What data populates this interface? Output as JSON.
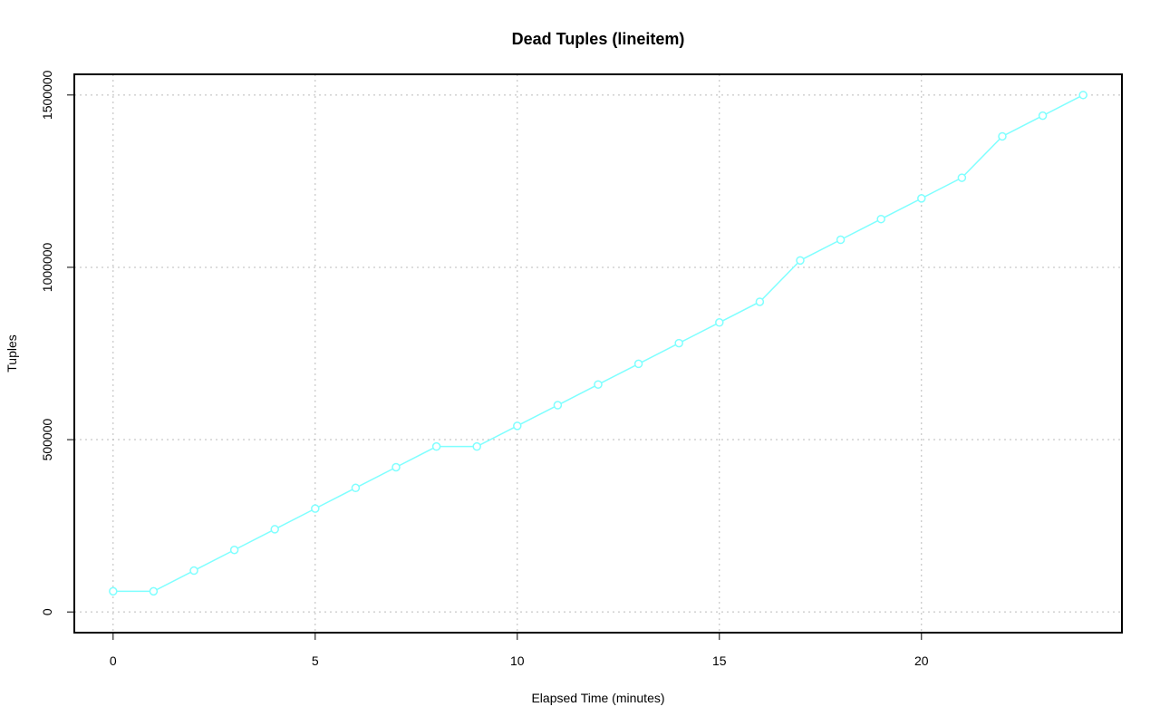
{
  "chart_data": {
    "type": "line",
    "title": "Dead Tuples (lineitem)",
    "x_label": "Elapsed Time (minutes)",
    "y_label": "Tuples",
    "x": [
      0,
      1,
      2,
      3,
      4,
      5,
      6,
      7,
      8,
      9,
      10,
      11,
      12,
      13,
      14,
      15,
      16,
      17,
      18,
      19,
      20,
      21,
      22,
      23,
      24
    ],
    "series": [
      {
        "color": "#7fffff",
        "values": [
          60000,
          60000,
          120000,
          180000,
          240000,
          300000,
          360000,
          420000,
          480000,
          480000,
          540000,
          600000,
          660000,
          720000,
          780000,
          840000,
          900000,
          1020000,
          1080000,
          1140000,
          1200000,
          1260000,
          1380000,
          1440000,
          1500000
        ]
      }
    ],
    "xlim": [
      -0.96,
      24.96
    ],
    "xticks": [
      0,
      5,
      10,
      15,
      20
    ],
    "ylim": [
      -60000,
      1560000
    ],
    "yticks": [
      0,
      500000,
      1000000,
      1500000
    ],
    "grid": true
  }
}
